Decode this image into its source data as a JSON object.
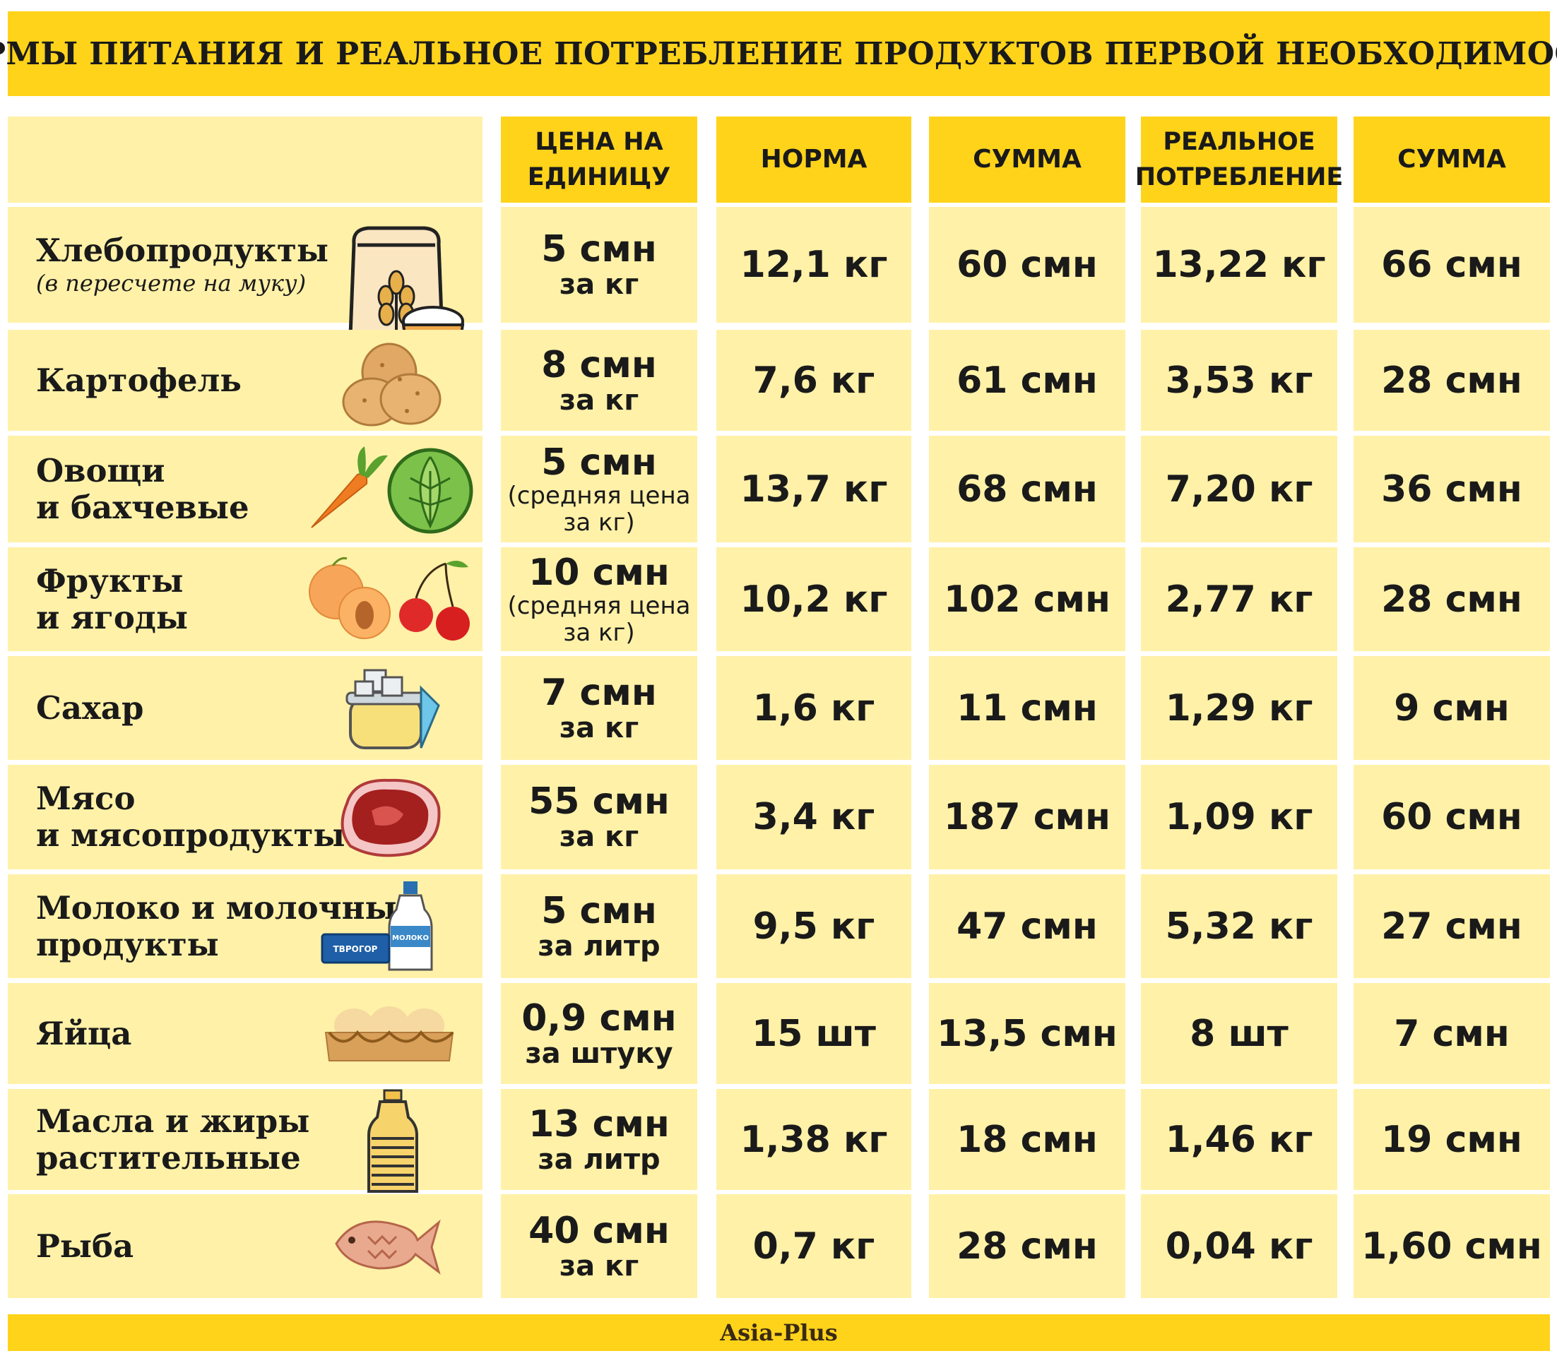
{
  "title": "НОРМЫ ПИТАНИЯ И РЕАЛЬНОЕ ПОТРЕБЛЕНИЕ ПРОДУКТОВ ПЕРВОЙ НЕОБХОДИМОСТИ",
  "footer": "Asia-Plus",
  "colors": {
    "header_yellow": "#ffd31a",
    "row_yellow": "#fff1a8"
  },
  "headers": {
    "price": "ЦЕНА НА ЕДИНИЦУ",
    "norm": "НОРМА",
    "norm_sum": "СУММА",
    "real": "РЕАЛЬНОЕ ПОТРЕБЛЕНИЕ",
    "real_sum": "СУММА"
  },
  "chart_data": {
    "type": "table",
    "title": "НОРМЫ ПИТАНИЯ И РЕАЛЬНОЕ ПОТРЕБЛЕНИЕ ПРОДУКТОВ ПЕРВОЙ НЕОБХОДИМОСТИ",
    "columns": [
      "",
      "ЦЕНА НА ЕДИНИЦУ",
      "НОРМА",
      "СУММА",
      "РЕАЛЬНОЕ ПОТРЕБЛЕНИЕ",
      "СУММА"
    ],
    "rows": [
      {
        "product": "Хлебопродукты",
        "product_note": "(в пересчете на муку)",
        "icon": "flour-sack-icon",
        "price_value": "5 смн",
        "price_unit": "за кг",
        "price_note": "",
        "norm": "12,1 кг",
        "norm_sum": "60 смн",
        "real": "13,22 кг",
        "real_sum": "66 смн"
      },
      {
        "product": "Картофель",
        "product_note": "",
        "icon": "potato-icon",
        "price_value": "8 смн",
        "price_unit": "за кг",
        "price_note": "",
        "norm": "7,6 кг",
        "norm_sum": "61 смн",
        "real": "3,53 кг",
        "real_sum": "28 смн"
      },
      {
        "product": "Овощи\nи бахчевые",
        "product_note": "",
        "icon": "carrot-cabbage-icon",
        "price_value": "5 смн",
        "price_unit": "",
        "price_note": "(средняя цена\nза кг)",
        "norm": "13,7 кг",
        "norm_sum": "68 смн",
        "real": "7,20 кг",
        "real_sum": "36 смн"
      },
      {
        "product": "Фрукты\nи ягоды",
        "product_note": "",
        "icon": "peach-cherry-icon",
        "price_value": "10 смн",
        "price_unit": "",
        "price_note": "(средняя цена\nза кг)",
        "norm": "10,2 кг",
        "norm_sum": "102 смн",
        "real": "2,77 кг",
        "real_sum": "28 смн"
      },
      {
        "product": "Сахар",
        "product_note": "",
        "icon": "sugar-bowl-icon",
        "price_value": "7 смн",
        "price_unit": "за кг",
        "price_note": "",
        "norm": "1,6 кг",
        "norm_sum": "11 смн",
        "real": "1,29 кг",
        "real_sum": "9 смн"
      },
      {
        "product": "Мясо\nи мясопродукты",
        "product_note": "",
        "icon": "meat-steak-icon",
        "price_value": "55 смн",
        "price_unit": "за кг",
        "price_note": "",
        "norm": "3,4 кг",
        "norm_sum": "187 смн",
        "real": "1,09 кг",
        "real_sum": "60 смн"
      },
      {
        "product": "Молоко и молочные\nпродукты",
        "product_note": "",
        "icon": "milk-bottle-icon",
        "icon_labels": {
          "milk": "МОЛОКО",
          "curd": "ТВРОГОР"
        },
        "price_value": "5 смн",
        "price_unit": "за литр",
        "price_note": "",
        "norm": "9,5 кг",
        "norm_sum": "47 смн",
        "real": "5,32 кг",
        "real_sum": "27 смн"
      },
      {
        "product": "Яйца",
        "product_note": "",
        "icon": "egg-tray-icon",
        "price_value": "0,9 смн",
        "price_unit": "за штуку",
        "price_note": "",
        "norm": "15 шт",
        "norm_sum": "13,5 смн",
        "real": "8 шт",
        "real_sum": "7 смн"
      },
      {
        "product": "Масла и жиры\nрастительные",
        "product_note": "",
        "icon": "oil-bottle-icon",
        "price_value": "13 смн",
        "price_unit": "за литр",
        "price_note": "",
        "norm": "1,38 кг",
        "norm_sum": "18 смн",
        "real": "1,46 кг",
        "real_sum": "19 смн"
      },
      {
        "product": "Рыба",
        "product_note": "",
        "icon": "fish-icon",
        "price_value": "40 смн",
        "price_unit": "за кг",
        "price_note": "",
        "norm": "0,7 кг",
        "norm_sum": "28 смн",
        "real": "0,04 кг",
        "real_sum": "1,60 смн"
      }
    ]
  }
}
